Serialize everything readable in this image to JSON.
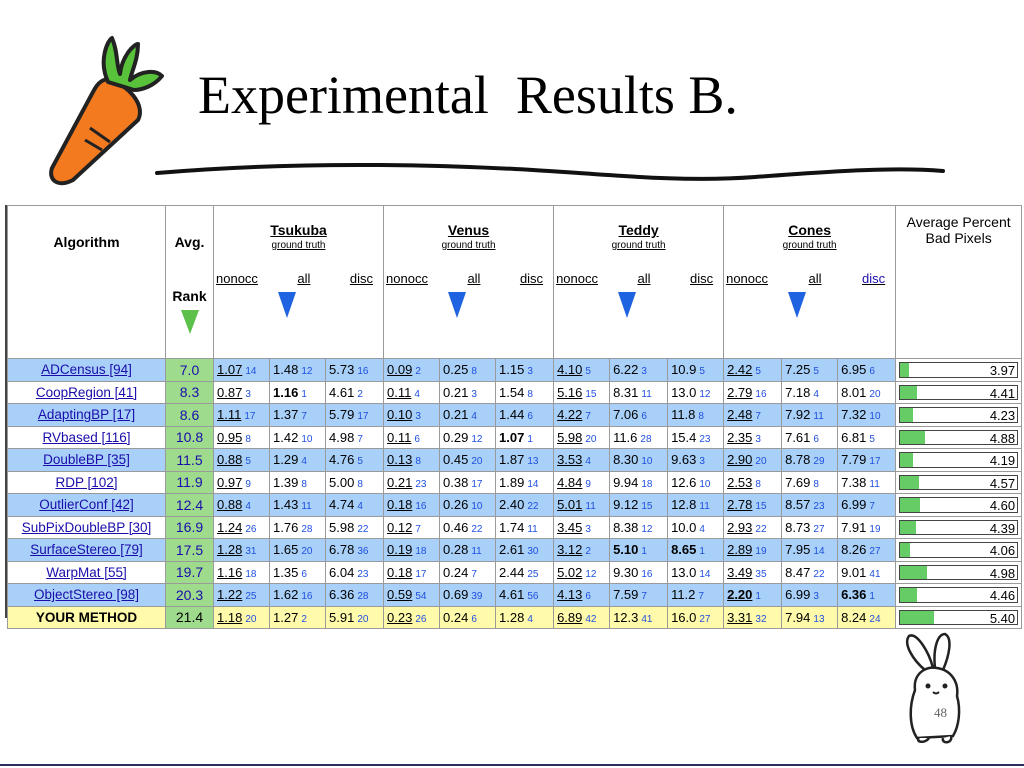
{
  "title": "Experimental  Results B.",
  "page_number": "48",
  "table": {
    "headers": {
      "algorithm": "Algorithm",
      "avg": "Avg.",
      "rank": "Rank",
      "bpp": "Average Percent Bad Pixels",
      "ground_truth": "ground truth",
      "datasets": [
        "Tsukuba",
        "Venus",
        "Teddy",
        "Cones"
      ],
      "cols": [
        "nonocc",
        "all",
        "disc"
      ]
    },
    "rows": [
      {
        "algo": "ADCensus [94]",
        "avg": "7.0",
        "v": [
          [
            "1.07",
            "14"
          ],
          [
            "1.48",
            "12"
          ],
          [
            "5.73",
            "16"
          ],
          [
            "0.09",
            "2"
          ],
          [
            "0.25",
            "8"
          ],
          [
            "1.15",
            "3"
          ],
          [
            "4.10",
            "5"
          ],
          [
            "6.22",
            "3"
          ],
          [
            "10.9",
            "5"
          ],
          [
            "2.42",
            "5"
          ],
          [
            "7.25",
            "5"
          ],
          [
            "6.95",
            "6"
          ]
        ],
        "bpp": "3.97",
        "bpp_value": 3.97
      },
      {
        "algo": "CoopRegion [41]",
        "avg": "8.3",
        "v": [
          [
            "0.87",
            "3"
          ],
          [
            "1.16",
            "1"
          ],
          [
            "4.61",
            "2"
          ],
          [
            "0.11",
            "4"
          ],
          [
            "0.21",
            "3"
          ],
          [
            "1.54",
            "8"
          ],
          [
            "5.16",
            "15"
          ],
          [
            "8.31",
            "11"
          ],
          [
            "13.0",
            "12"
          ],
          [
            "2.79",
            "16"
          ],
          [
            "7.18",
            "4"
          ],
          [
            "8.01",
            "20"
          ]
        ],
        "bpp": "4.41",
        "bpp_value": 4.41
      },
      {
        "algo": "AdaptingBP [17]",
        "avg": "8.6",
        "v": [
          [
            "1.11",
            "17"
          ],
          [
            "1.37",
            "7"
          ],
          [
            "5.79",
            "17"
          ],
          [
            "0.10",
            "3"
          ],
          [
            "0.21",
            "4"
          ],
          [
            "1.44",
            "6"
          ],
          [
            "4.22",
            "7"
          ],
          [
            "7.06",
            "6"
          ],
          [
            "11.8",
            "8"
          ],
          [
            "2.48",
            "7"
          ],
          [
            "7.92",
            "11"
          ],
          [
            "7.32",
            "10"
          ]
        ],
        "bpp": "4.23",
        "bpp_value": 4.23
      },
      {
        "algo": "RVbased [116]",
        "avg": "10.8",
        "v": [
          [
            "0.95",
            "8"
          ],
          [
            "1.42",
            "10"
          ],
          [
            "4.98",
            "7"
          ],
          [
            "0.11",
            "6"
          ],
          [
            "0.29",
            "12"
          ],
          [
            "1.07",
            "1"
          ],
          [
            "5.98",
            "20"
          ],
          [
            "11.6",
            "28"
          ],
          [
            "15.4",
            "23"
          ],
          [
            "2.35",
            "3"
          ],
          [
            "7.61",
            "6"
          ],
          [
            "6.81",
            "5"
          ]
        ],
        "bpp": "4.88",
        "bpp_value": 4.88
      },
      {
        "algo": "DoubleBP [35]",
        "avg": "11.5",
        "v": [
          [
            "0.88",
            "5"
          ],
          [
            "1.29",
            "4"
          ],
          [
            "4.76",
            "5"
          ],
          [
            "0.13",
            "8"
          ],
          [
            "0.45",
            "20"
          ],
          [
            "1.87",
            "13"
          ],
          [
            "3.53",
            "4"
          ],
          [
            "8.30",
            "10"
          ],
          [
            "9.63",
            "3"
          ],
          [
            "2.90",
            "20"
          ],
          [
            "8.78",
            "29"
          ],
          [
            "7.79",
            "17"
          ]
        ],
        "bpp": "4.19",
        "bpp_value": 4.19
      },
      {
        "algo": "RDP [102]",
        "avg": "11.9",
        "v": [
          [
            "0.97",
            "9"
          ],
          [
            "1.39",
            "8"
          ],
          [
            "5.00",
            "8"
          ],
          [
            "0.21",
            "23"
          ],
          [
            "0.38",
            "17"
          ],
          [
            "1.89",
            "14"
          ],
          [
            "4.84",
            "9"
          ],
          [
            "9.94",
            "18"
          ],
          [
            "12.6",
            "10"
          ],
          [
            "2.53",
            "8"
          ],
          [
            "7.69",
            "8"
          ],
          [
            "7.38",
            "11"
          ]
        ],
        "bpp": "4.57",
        "bpp_value": 4.57
      },
      {
        "algo": "OutlierConf [42]",
        "avg": "12.4",
        "v": [
          [
            "0.88",
            "4"
          ],
          [
            "1.43",
            "11"
          ],
          [
            "4.74",
            "4"
          ],
          [
            "0.18",
            "16"
          ],
          [
            "0.26",
            "10"
          ],
          [
            "2.40",
            "22"
          ],
          [
            "5.01",
            "11"
          ],
          [
            "9.12",
            "15"
          ],
          [
            "12.8",
            "11"
          ],
          [
            "2.78",
            "15"
          ],
          [
            "8.57",
            "23"
          ],
          [
            "6.99",
            "7"
          ]
        ],
        "bpp": "4.60",
        "bpp_value": 4.6
      },
      {
        "algo": "SubPixDoubleBP [30]",
        "avg": "16.9",
        "v": [
          [
            "1.24",
            "26"
          ],
          [
            "1.76",
            "28"
          ],
          [
            "5.98",
            "22"
          ],
          [
            "0.12",
            "7"
          ],
          [
            "0.46",
            "22"
          ],
          [
            "1.74",
            "11"
          ],
          [
            "3.45",
            "3"
          ],
          [
            "8.38",
            "12"
          ],
          [
            "10.0",
            "4"
          ],
          [
            "2.93",
            "22"
          ],
          [
            "8.73",
            "27"
          ],
          [
            "7.91",
            "19"
          ]
        ],
        "bpp": "4.39",
        "bpp_value": 4.39
      },
      {
        "algo": "SurfaceStereo [79]",
        "avg": "17.5",
        "v": [
          [
            "1.28",
            "31"
          ],
          [
            "1.65",
            "20"
          ],
          [
            "6.78",
            "36"
          ],
          [
            "0.19",
            "18"
          ],
          [
            "0.28",
            "11"
          ],
          [
            "2.61",
            "30"
          ],
          [
            "3.12",
            "2"
          ],
          [
            "5.10",
            "1"
          ],
          [
            "8.65",
            "1"
          ],
          [
            "2.89",
            "19"
          ],
          [
            "7.95",
            "14"
          ],
          [
            "8.26",
            "27"
          ]
        ],
        "bpp": "4.06",
        "bpp_value": 4.06
      },
      {
        "algo": "WarpMat [55]",
        "avg": "19.7",
        "v": [
          [
            "1.16",
            "18"
          ],
          [
            "1.35",
            "6"
          ],
          [
            "6.04",
            "23"
          ],
          [
            "0.18",
            "17"
          ],
          [
            "0.24",
            "7"
          ],
          [
            "2.44",
            "25"
          ],
          [
            "5.02",
            "12"
          ],
          [
            "9.30",
            "16"
          ],
          [
            "13.0",
            "14"
          ],
          [
            "3.49",
            "35"
          ],
          [
            "8.47",
            "22"
          ],
          [
            "9.01",
            "41"
          ]
        ],
        "bpp": "4.98",
        "bpp_value": 4.98
      },
      {
        "algo": "ObjectStereo [98]",
        "avg": "20.3",
        "v": [
          [
            "1.22",
            "25"
          ],
          [
            "1.62",
            "16"
          ],
          [
            "6.36",
            "28"
          ],
          [
            "0.59",
            "54"
          ],
          [
            "0.69",
            "39"
          ],
          [
            "4.61",
            "56"
          ],
          [
            "4.13",
            "6"
          ],
          [
            "7.59",
            "7"
          ],
          [
            "11.2",
            "7"
          ],
          [
            "2.20",
            "1"
          ],
          [
            "6.99",
            "3"
          ],
          [
            "6.36",
            "1"
          ]
        ],
        "bpp": "4.46",
        "bpp_value": 4.46
      },
      {
        "algo": "YOUR METHOD",
        "avg": "21.4",
        "v": [
          [
            "1.18",
            "20"
          ],
          [
            "1.27",
            "2"
          ],
          [
            "5.91",
            "20"
          ],
          [
            "0.23",
            "26"
          ],
          [
            "0.24",
            "6"
          ],
          [
            "1.28",
            "4"
          ],
          [
            "6.89",
            "42"
          ],
          [
            "12.3",
            "41"
          ],
          [
            "16.0",
            "27"
          ],
          [
            "3.31",
            "32"
          ],
          [
            "7.94",
            "13"
          ],
          [
            "8.24",
            "24"
          ]
        ],
        "bpp": "5.40",
        "bpp_value": 5.4
      }
    ]
  }
}
